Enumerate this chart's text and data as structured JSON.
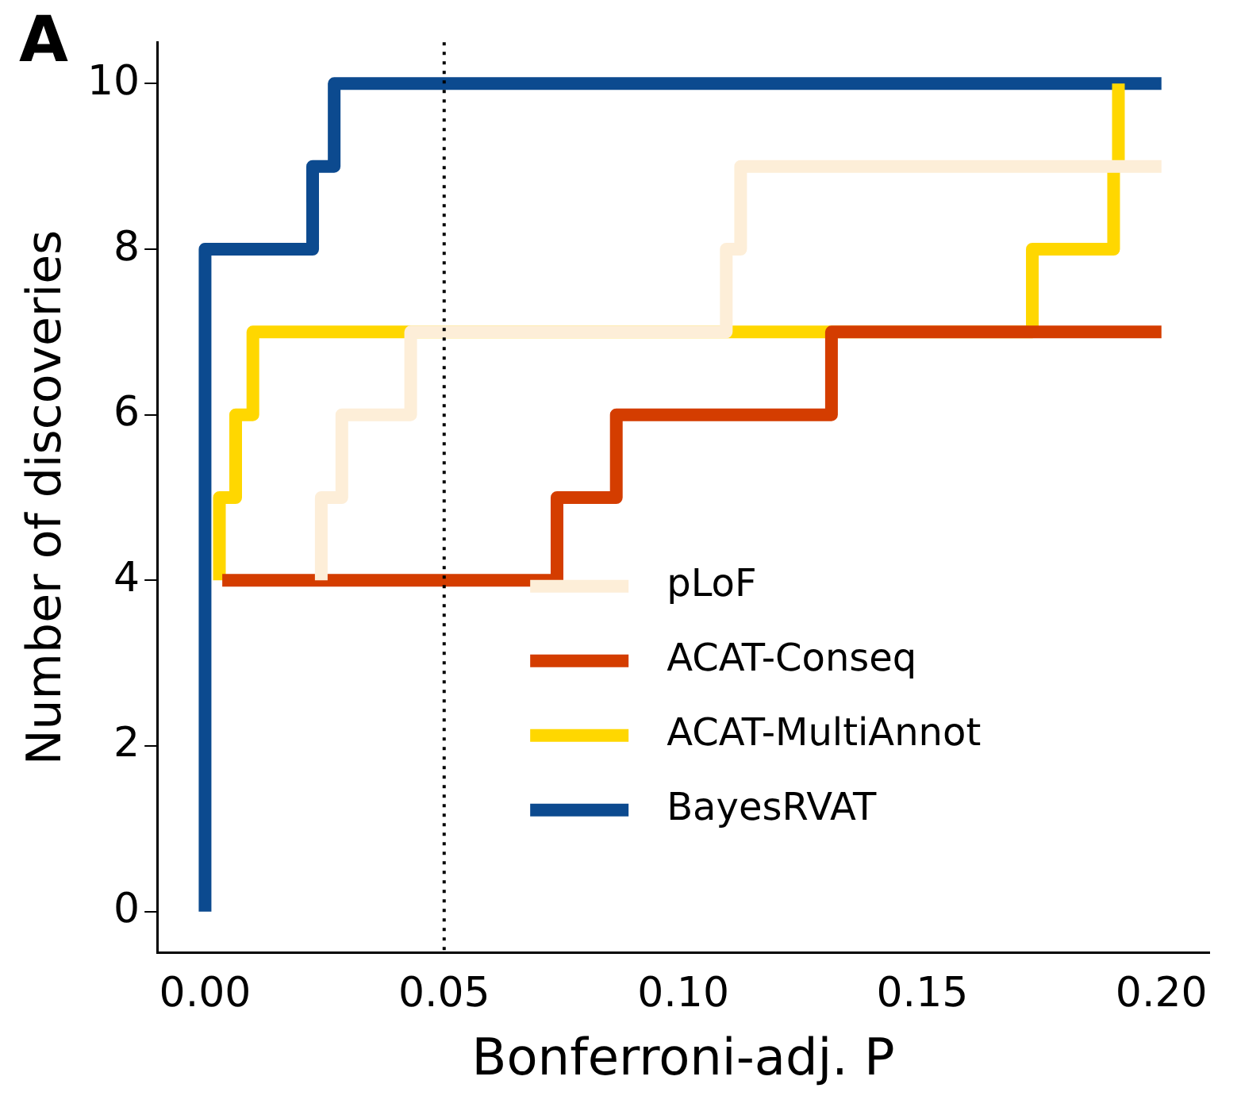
{
  "chart_data": {
    "type": "step",
    "xlabel": "Bonferroni-adj. P",
    "ylabel": "Number of discoveries",
    "annotations": [
      "A"
    ],
    "xlim": [
      -0.01,
      0.21
    ],
    "ylim": [
      -0.5,
      10.5
    ],
    "xticks": [
      {
        "value": 0,
        "label": "0.00"
      },
      {
        "value": 0.05,
        "label": "0.05"
      },
      {
        "value": 0.1,
        "label": "0.10"
      },
      {
        "value": 0.15,
        "label": "0.15"
      },
      {
        "value": 0.2,
        "label": "0.20"
      }
    ],
    "yticks": [
      0,
      2,
      4,
      6,
      8,
      10
    ],
    "grid": false,
    "legend": "bottom right",
    "line_style": "solid",
    "marker": "none",
    "ref_lines": [
      {
        "axis": "x",
        "value": 0.05,
        "label": null,
        "color": "#000000",
        "line_style": "dotted"
      }
    ],
    "series": [
      {
        "name": "pLoF",
        "color": "#fdeed8",
        "x": [
          0.0243,
          0.0243,
          0.0286,
          0.043,
          0.109,
          0.112,
          0.2
        ],
        "values": [
          4,
          5,
          6,
          7,
          8,
          9,
          9
        ]
      },
      {
        "name": "ACAT-Conseq",
        "color": "#d43d00",
        "x": [
          0.0036,
          0.0736,
          0.086,
          0.131,
          0.2
        ],
        "values": [
          4,
          5,
          6,
          7,
          7
        ]
      },
      {
        "name": "ACAT-MultiAnnot",
        "color": "#ffd700",
        "x": [
          0.003,
          0.003,
          0.0064,
          0.01,
          0.173,
          0.19,
          0.191
        ],
        "values": [
          4,
          5,
          6,
          7,
          8,
          9,
          10
        ]
      },
      {
        "name": "BayesRVAT",
        "color": "#0c4a8f",
        "x": [
          0,
          0,
          0.0225,
          0.027,
          0.2
        ],
        "values": [
          0,
          8,
          9,
          10,
          10
        ]
      }
    ]
  }
}
